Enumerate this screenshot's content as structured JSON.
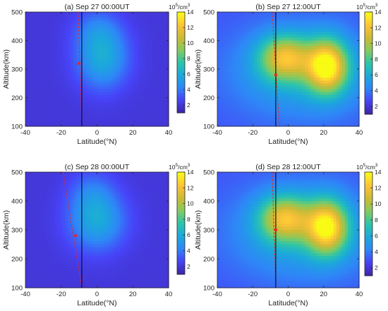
{
  "chart_data": [
    {
      "type": "heatmap",
      "title": "(a) Sep 27 00:00UT",
      "xlabel": "Latitude(°N)",
      "ylabel": "Altitude(km)",
      "xlim": [
        -40,
        40
      ],
      "ylim": [
        100,
        500
      ],
      "xticks": [
        -40,
        -20,
        0,
        20,
        40
      ],
      "yticks": [
        100,
        200,
        300,
        400,
        500
      ],
      "colorbar": {
        "unit_base": "10",
        "unit_exp": "5",
        "unit_suffix": "/cm",
        "unit_suffix_exp": "3",
        "range": [
          1,
          14
        ],
        "ticks": [
          2,
          4,
          6,
          8,
          10,
          12,
          14
        ]
      },
      "background_level": 2.0,
      "blobs": [
        {
          "lat": 3,
          "alt": 340,
          "sigma_lat": 10,
          "sigma_alt": 75,
          "amplitude": 4.0
        },
        {
          "lat": 0,
          "alt": 440,
          "sigma_lat": 9,
          "sigma_alt": 50,
          "amplitude": 1.5
        }
      ],
      "vertical_line_lat": -8.5,
      "trajectory": {
        "lat_start": -10.5,
        "alt_start": 500,
        "lat_end": -8.5,
        "alt_end": 100
      },
      "marker": {
        "lat": -10,
        "alt": 320
      }
    },
    {
      "type": "heatmap",
      "title": "(b) Sep 27 12:00UT",
      "xlabel": "Latitude(°N)",
      "ylabel": "Altitude(km)",
      "xlim": [
        -40,
        40
      ],
      "ylim": [
        100,
        500
      ],
      "xticks": [
        -40,
        -20,
        0,
        20,
        40
      ],
      "yticks": [
        100,
        200,
        300,
        400,
        500
      ],
      "colorbar": {
        "unit_base": "10",
        "unit_exp": "5",
        "unit_suffix": "/cm",
        "unit_suffix_exp": "3",
        "range": [
          1,
          14
        ],
        "ticks": [
          2,
          4,
          6,
          8,
          10,
          12,
          14
        ]
      },
      "background_level": 3.0,
      "blobs": [
        {
          "lat": -2,
          "alt": 340,
          "sigma_lat": 10,
          "sigma_alt": 55,
          "amplitude": 7.0
        },
        {
          "lat": 22,
          "alt": 310,
          "sigma_lat": 8,
          "sigma_alt": 65,
          "amplitude": 9.5
        },
        {
          "lat": 8,
          "alt": 290,
          "sigma_lat": 28,
          "sigma_alt": 110,
          "amplitude": 3.0
        }
      ],
      "vertical_line_lat": -7,
      "trajectory": {
        "lat_start": -9,
        "alt_start": 500,
        "lat_end": -5,
        "alt_end": 100
      },
      "marker": {
        "lat": -7,
        "alt": 280
      }
    },
    {
      "type": "heatmap",
      "title": "(c) Sep 28 00:00UT",
      "xlabel": "Latitude(°N)",
      "ylabel": "Altitude(km)",
      "xlim": [
        -40,
        40
      ],
      "ylim": [
        100,
        500
      ],
      "xticks": [
        -40,
        -20,
        0,
        20,
        40
      ],
      "yticks": [
        100,
        200,
        300,
        400,
        500
      ],
      "colorbar": {
        "unit_base": "10",
        "unit_exp": "5",
        "unit_suffix": "/cm",
        "unit_suffix_exp": "3",
        "range": [
          1,
          14
        ],
        "ticks": [
          2,
          4,
          6,
          8,
          10,
          12,
          14
        ]
      },
      "background_level": 2.0,
      "blobs": [
        {
          "lat": 0,
          "alt": 330,
          "sigma_lat": 11,
          "sigma_alt": 70,
          "amplitude": 3.8
        },
        {
          "lat": -3,
          "alt": 430,
          "sigma_lat": 9,
          "sigma_alt": 55,
          "amplitude": 1.5
        }
      ],
      "vertical_line_lat": -8.5,
      "trajectory": {
        "lat_start": -19,
        "alt_start": 500,
        "lat_end": -8.5,
        "alt_end": 100
      },
      "marker": {
        "lat": -12,
        "alt": 280
      }
    },
    {
      "type": "heatmap",
      "title": "(d) Sep 28 12:00UT",
      "xlabel": "Latitude(°N)",
      "ylabel": "Altitude(km)",
      "xlim": [
        -40,
        40
      ],
      "ylim": [
        100,
        500
      ],
      "xticks": [
        -40,
        -20,
        0,
        20,
        40
      ],
      "yticks": [
        100,
        200,
        300,
        400,
        500
      ],
      "colorbar": {
        "unit_base": "10",
        "unit_exp": "5",
        "unit_suffix": "/cm",
        "unit_suffix_exp": "3",
        "range": [
          1,
          14
        ],
        "ticks": [
          2,
          4,
          6,
          8,
          10,
          12,
          14
        ]
      },
      "background_level": 3.0,
      "blobs": [
        {
          "lat": -2,
          "alt": 340,
          "sigma_lat": 10,
          "sigma_alt": 55,
          "amplitude": 7.0
        },
        {
          "lat": 22,
          "alt": 310,
          "sigma_lat": 8,
          "sigma_alt": 65,
          "amplitude": 9.0
        },
        {
          "lat": 8,
          "alt": 290,
          "sigma_lat": 28,
          "sigma_alt": 110,
          "amplitude": 3.0
        }
      ],
      "vertical_line_lat": -7,
      "trajectory": {
        "lat_start": -9,
        "alt_start": 500,
        "lat_end": -7,
        "alt_end": 100
      },
      "marker": {
        "lat": -7,
        "alt": 300
      }
    }
  ],
  "colors": {
    "trajectory": "#e8262a",
    "marker": "#e8262a",
    "vertical_line": "#000000",
    "axis": "#262626"
  },
  "colormap": [
    "#3e26a8",
    "#4743f8",
    "#2e87f7",
    "#1ba9db",
    "#2cc4aa",
    "#82cb60",
    "#cbba35",
    "#fcc238",
    "#f9fb15"
  ]
}
